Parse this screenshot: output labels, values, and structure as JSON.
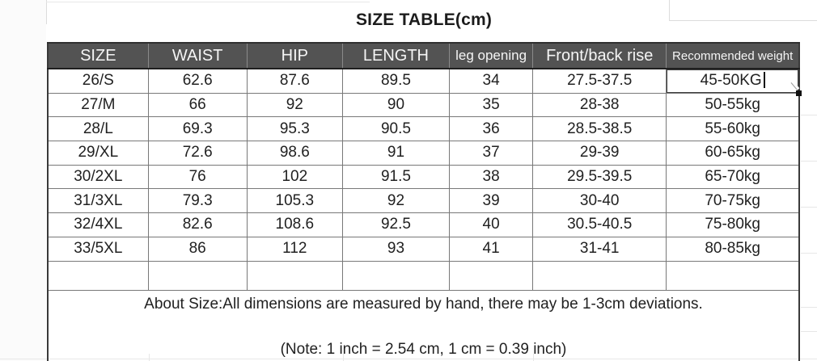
{
  "title": "SIZE TABLE(cm)",
  "table": {
    "headers": [
      {
        "label": "SIZE",
        "size": "large"
      },
      {
        "label": "WAIST",
        "size": "large"
      },
      {
        "label": "HIP",
        "size": "large"
      },
      {
        "label": "LENGTH",
        "size": "large"
      },
      {
        "label": "leg opening",
        "size": "medium"
      },
      {
        "label": "Front/back rise",
        "size": "large"
      },
      {
        "label": "Recommended weight",
        "size": "small"
      }
    ],
    "rows": [
      [
        "26/S",
        "62.6",
        "87.6",
        "89.5",
        "34",
        "27.5-37.5",
        "45-50KG"
      ],
      [
        "27/M",
        "66",
        "92",
        "90",
        "35",
        "28-38",
        "50-55kg"
      ],
      [
        "28/L",
        "69.3",
        "95.3",
        "90.5",
        "36",
        "28.5-38.5",
        "55-60kg"
      ],
      [
        "29/XL",
        "72.6",
        "98.6",
        "91",
        "37",
        "29-39",
        "60-65kg"
      ],
      [
        "30/2XL",
        "76",
        "102",
        "91.5",
        "38",
        "29.5-39.5",
        "65-70kg"
      ],
      [
        "31/3XL",
        "79.3",
        "105.3",
        "92",
        "39",
        "30-40",
        "70-75kg"
      ],
      [
        "32/4XL",
        "82.6",
        "108.6",
        "92.5",
        "40",
        "30.5-40.5",
        "75-80kg"
      ],
      [
        "33/5XL",
        "86",
        "112",
        "93",
        "41",
        "31-41",
        "80-85kg"
      ]
    ],
    "editing_cell": {
      "row": 0,
      "col": 6,
      "value": "45-50KG"
    }
  },
  "notes": {
    "about": "About Size:All dimensions are measured by hand, there may be 1-3cm deviations.",
    "conversion": "(Note: 1 inch = 2.54 cm, 1 cm = 0.39 inch)"
  },
  "colors": {
    "header_bg": "#535353",
    "header_text": "#f5f5f5",
    "grid_line": "#787878",
    "outer_border": "#3a3a3a",
    "body_text": "#212121"
  }
}
